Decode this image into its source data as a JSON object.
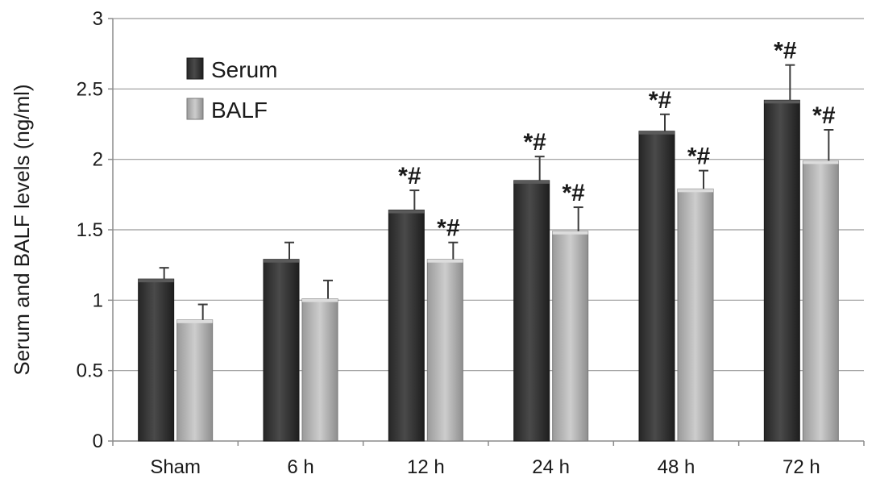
{
  "chart_data": {
    "type": "bar",
    "ylabel": "Serum and BALF levels (ng/ml)",
    "xlabel": "",
    "ylim": [
      0,
      3
    ],
    "yticks": [
      0,
      0.5,
      1,
      1.5,
      2,
      2.5,
      3
    ],
    "ytick_labels": [
      "0",
      "0.5",
      "1",
      "1.5",
      "2",
      "2.5",
      "3"
    ],
    "grid": true,
    "legend_position": "top-left",
    "categories": [
      "Sham",
      "6 h",
      "12 h",
      "24 h",
      "48 h",
      "72 h"
    ],
    "series": [
      {
        "name": "Serum",
        "color": "#3c3c3c",
        "values": [
          1.15,
          1.29,
          1.64,
          1.85,
          2.2,
          2.42
        ],
        "errors": [
          0.08,
          0.12,
          0.14,
          0.17,
          0.12,
          0.25
        ],
        "annotations": [
          "",
          "",
          "*#",
          "*#",
          "*#",
          "*#"
        ]
      },
      {
        "name": "BALF",
        "color": "#b4b4b4",
        "values": [
          0.86,
          1.01,
          1.29,
          1.49,
          1.79,
          1.99
        ],
        "errors": [
          0.11,
          0.13,
          0.12,
          0.17,
          0.13,
          0.22
        ],
        "annotations": [
          "",
          "",
          "*#",
          "*#",
          "*#",
          "*#"
        ]
      }
    ]
  }
}
